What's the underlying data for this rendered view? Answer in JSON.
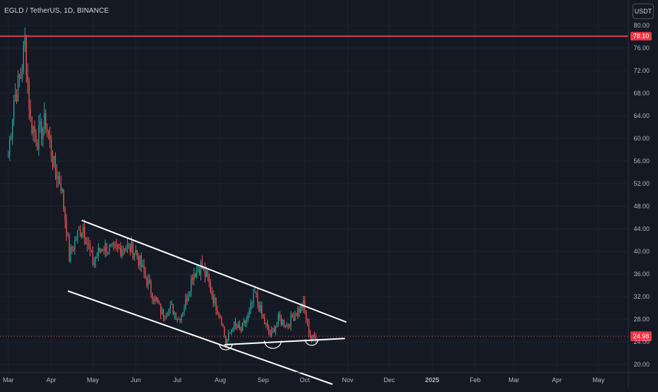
{
  "header": {
    "symbol": "EGLD / TetherUS, 1D, BINANCE",
    "currency": "USDT"
  },
  "colors": {
    "background": "#151924",
    "grid": "#1e222d",
    "text": "#b2b5be",
    "up": "#26a69a",
    "down": "#ef5350",
    "resistance": "#f23645",
    "trendline": "#ffffff",
    "last_price_badge": "#f23645"
  },
  "chart_data": {
    "type": "candlestick",
    "y_ticks": [
      "80.00",
      "76.00",
      "72.00",
      "68.00",
      "64.00",
      "60.00",
      "56.00",
      "52.00",
      "48.00",
      "44.00",
      "40.00",
      "36.00",
      "32.00",
      "28.00",
      "24.00",
      "20.00"
    ],
    "x_ticks": [
      "Mar",
      "Apr",
      "May",
      "Jun",
      "Jul",
      "Aug",
      "Sep",
      "Oct",
      "Nov",
      "Dec",
      "2025",
      "Feb",
      "Mar",
      "Apr",
      "May"
    ],
    "ylim": [
      17.5,
      82
    ],
    "horizontal_level": {
      "value": 78.1,
      "label": "78.10"
    },
    "last_price": {
      "value": 24.98,
      "label": "24.98"
    },
    "price_path": [
      [
        "2024-03-01",
        57
      ],
      [
        "2024-03-05",
        67
      ],
      [
        "2024-03-10",
        71
      ],
      [
        "2024-03-13",
        77
      ],
      [
        "2024-03-17",
        63
      ],
      [
        "2024-03-22",
        60
      ],
      [
        "2024-03-28",
        63
      ],
      [
        "2024-04-03",
        55
      ],
      [
        "2024-04-08",
        52
      ],
      [
        "2024-04-12",
        44
      ],
      [
        "2024-04-14",
        39
      ],
      [
        "2024-04-20",
        43
      ],
      [
        "2024-04-24",
        44.5
      ],
      [
        "2024-05-01",
        38
      ],
      [
        "2024-05-08",
        41
      ],
      [
        "2024-05-16",
        40
      ],
      [
        "2024-05-24",
        41
      ],
      [
        "2024-06-01",
        40
      ],
      [
        "2024-06-07",
        36
      ],
      [
        "2024-06-14",
        32
      ],
      [
        "2024-06-20",
        29
      ],
      [
        "2024-06-27",
        30
      ],
      [
        "2024-07-02",
        28
      ],
      [
        "2024-07-07",
        31
      ],
      [
        "2024-07-12",
        36
      ],
      [
        "2024-07-18",
        37.5
      ],
      [
        "2024-07-23",
        35
      ],
      [
        "2024-07-28",
        31
      ],
      [
        "2024-08-02",
        28
      ],
      [
        "2024-08-05",
        23.5
      ],
      [
        "2024-08-10",
        27
      ],
      [
        "2024-08-16",
        26
      ],
      [
        "2024-08-22",
        29
      ],
      [
        "2024-08-26",
        32.5
      ],
      [
        "2024-09-01",
        28
      ],
      [
        "2024-09-06",
        25
      ],
      [
        "2024-09-12",
        28
      ],
      [
        "2024-09-18",
        27
      ],
      [
        "2024-09-24",
        29
      ],
      [
        "2024-09-30",
        30.5
      ],
      [
        "2024-10-03",
        27
      ],
      [
        "2024-10-06",
        24.5
      ],
      [
        "2024-10-10",
        25
      ]
    ],
    "annotations": {
      "channel_upper": [
        [
          "2024-04-23",
          45.5
        ],
        [
          "2024-10-31",
          27.5
        ]
      ],
      "channel_lower": [
        [
          "2024-04-13",
          33
        ],
        [
          "2024-10-21",
          16.5
        ]
      ],
      "support_line": [
        [
          "2024-08-04",
          23.5
        ],
        [
          "2024-10-30",
          24.6
        ]
      ],
      "arcs": [
        {
          "x": "2024-08-05",
          "y": 23.6
        },
        {
          "x": "2024-09-08",
          "y": 24.2
        },
        {
          "x": "2024-10-06",
          "y": 24.4
        }
      ]
    }
  }
}
